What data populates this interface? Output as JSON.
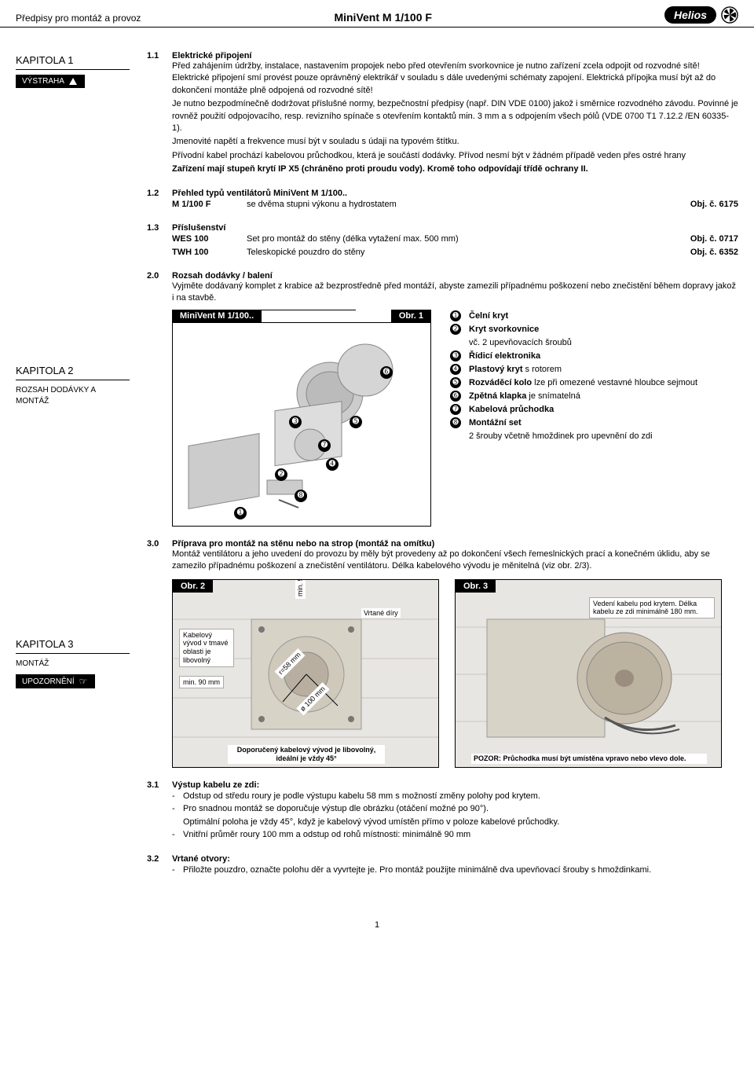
{
  "header": {
    "left": "Předpisy pro montáž a provoz",
    "center": "MiniVent M 1/100 F",
    "logo_text": "Helios"
  },
  "sidebar": {
    "ch1": {
      "title": "KAPITOLA 1",
      "badge": "VÝSTRAHA"
    },
    "ch2": {
      "title": "KAPITOLA 2",
      "subtext": "ROZSAH DODÁVKY A MONTÁŽ"
    },
    "ch3": {
      "title": "KAPITOLA 3",
      "subtext": "MONTÁŽ",
      "badge": "UPOZORNĚNÍ"
    }
  },
  "s11": {
    "num": "1.1",
    "title": "Elektrické připojení",
    "p1": "Před zahájením údržby, instalace, nastavením propojek nebo před otevřením svorkovnice je nutno zařízení zcela odpojit od rozvodné sítě! Elektrické připojení smí provést pouze oprávněný elektrikář v souladu s dále uvedenými schématy zapojení. Elektrická přípojka musí být až do dokončení montáže plně odpojená od rozvodné sítě!",
    "p2": "Je nutno bezpodmínečně dodržovat příslušné normy, bezpečnostní předpisy (např. DIN VDE 0100) jakož i směrnice rozvodného závodu. Povinné je rovněž použití odpojovacího, resp. revizního spínače s otevřením kontaktů min. 3 mm a s odpojením všech pólů (VDE 0700 T1 7.12.2 /EN 60335-1).",
    "p3": "Jmenovité napětí a frekvence musí být v souladu s údaji na typovém štítku.",
    "p4": "Přívodní kabel prochází kabelovou průchodkou, která je součástí dodávky. Přívod nesmí být v žádném případě veden přes ostré hrany",
    "p5": "Zařízení mají stupeň krytí IP X5 (chráněno proti proudu vody). Kromě toho odpovídají třídě ochrany II."
  },
  "s12": {
    "num": "1.2",
    "title": "Přehled typů ventilátorů MiniVent M 1/100..",
    "row": {
      "c1": "M 1/100 F",
      "c2": "se dvěma stupni výkonu a hydrostatem",
      "c3": "Obj. č. 6175"
    }
  },
  "s13": {
    "num": "1.3",
    "title": "Příslušenství",
    "row1": {
      "c1": "WES 100",
      "c2": "Set pro montáž do stěny (délka vytažení max. 500 mm)",
      "c3": "Obj. č. 0717"
    },
    "row2": {
      "c1": "TWH 100",
      "c2": "Teleskopické pouzdro do stěny",
      "c3": "Obj. č. 6352"
    }
  },
  "s20": {
    "num": "2.0",
    "title": "Rozsah dodávky / balení",
    "body": "Vyjměte dodávaný komplet z krabice až bezprostředně před montáží, abyste zamezili případnému poškození nebo znečistění během dopravy jakož i na stavbě.",
    "fig_title_left": "MiniVent M 1/100..",
    "fig_title_right": "Obr. 1",
    "legend": [
      {
        "n": "➊",
        "t": "Čelní kryt",
        "b": true
      },
      {
        "n": "➋",
        "t": "Kryt svorkovnice",
        "b": true,
        "sub": "vč. 2 upevňovacích šroubů"
      },
      {
        "n": "➌",
        "t": "Řídicí elektronika",
        "b": true
      },
      {
        "n": "➍",
        "t": "Plastový kryt",
        "b": true,
        "suffix": " s rotorem"
      },
      {
        "n": "➎",
        "t": "Rozváděcí kolo",
        "b": true,
        "suffix": " lze při omezené vestavné hloubce sejmout"
      },
      {
        "n": "➏",
        "t": "Zpětná klapka",
        "b": true,
        "suffix": " je snímatelná"
      },
      {
        "n": "➐",
        "t": "Kabelová průchodka",
        "b": true
      },
      {
        "n": "➑",
        "t": "Montážní set",
        "b": true,
        "sub": "2 šrouby včetně hmoždinek pro upevnění do zdi"
      }
    ]
  },
  "s30": {
    "num": "3.0",
    "title": "Příprava pro montáž na stěnu nebo na strop (montáž na omítku)",
    "body": "Montáž ventilátoru a jeho uvedení do provozu by měly být provedeny až po dokončení všech řemeslnických prací a konečném úklidu, aby se zamezilo případnému poškození a znečistění ventilátoru. Délka kabelového vývodu je měnitelná (viz obr. 2/3).",
    "fig2_label": "Obr. 2",
    "fig3_label": "Obr. 3",
    "fig2_ann1": "Kabelový vývod v tmavé oblasti je libovolný",
    "fig2_ann2": "min. 90 mm",
    "fig2_ann3": "min. 90 mm",
    "fig2_ann4": "Vrtané díry",
    "fig2_ann5": "r=58 mm",
    "fig2_ann6": "ø 100 mm",
    "fig2_caption": "Doporučený kabelový vývod je libovolný, ideální je vždy 45°",
    "fig3_ann1": "Vedení kabelu pod krytem. Délka kabelu ze zdi minimálně 180 mm.",
    "fig3_caption": "POZOR: Průchodka musí být umístěna vpravo nebo vlevo dole."
  },
  "s31": {
    "num": "3.1",
    "title": "Výstup kabelu ze zdi:",
    "li1": "Odstup od středu roury je podle výstupu kabelu 58 mm s možností změny polohy pod krytem.",
    "li2": "Pro snadnou montáž se doporučuje výstup dle obrázku (otáčení možné po 90°).",
    "li2b": "Optimální poloha je vždy 45°, když je kabelový vývod umístěn přímo v poloze kabelové průchodky.",
    "li3": "Vnitřní průměr roury 100 mm a odstup od rohů místnosti: minimálně 90 mm"
  },
  "s32": {
    "num": "3.2",
    "title": "Vrtané otvory:",
    "li1": "Přiložte pouzdro, označte polohu děr a vyvrtejte je. Pro montáž použijte minimálně dva upevňovací šrouby s hmoždinkami."
  },
  "page_number": "1",
  "colors": {
    "black": "#000000",
    "white": "#ffffff",
    "gray_bg": "#eeeeee"
  }
}
